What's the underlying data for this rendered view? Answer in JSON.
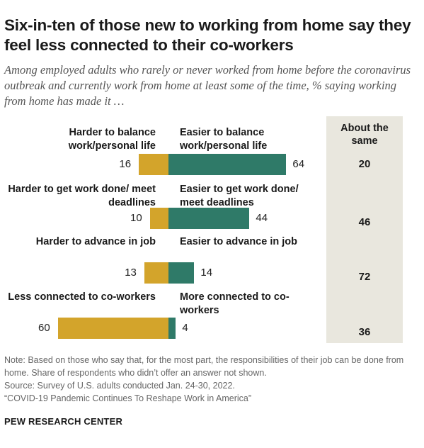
{
  "title": "Six-in-ten of those new to working from home say they feel less connected to their co-workers",
  "subtitle": "Among employed adults who rarely or never worked from home before the coronavirus outbreak and currently work from home at least some of the time, % saying working from home has made it …",
  "about_same_header": "About the same",
  "colors": {
    "harder": "#d3a42b",
    "easier": "#2f7a68",
    "panel": "#e9e7de"
  },
  "chart_data": {
    "type": "bar",
    "orientation": "horizontal-diverging",
    "rows": [
      {
        "left_label": "Harder to balance work/personal life",
        "left_value": 16,
        "right_label": "Easier to balance work/personal life",
        "right_value": 64,
        "about_same": 20
      },
      {
        "left_label": "Harder to get work done/ meet deadlines",
        "left_value": 10,
        "right_label": "Easier to get work done/ meet deadlines",
        "right_value": 44,
        "about_same": 46
      },
      {
        "left_label": "Harder to advance in job",
        "left_value": 13,
        "right_label": "Easier to advance in job",
        "right_value": 14,
        "about_same": 72
      },
      {
        "left_label": "Less connected to co-workers",
        "left_value": 60,
        "right_label": "More connected to co-workers",
        "right_value": 4,
        "about_same": 36
      }
    ]
  },
  "notes": [
    "Note: Based on those who say that, for the most part, the responsibilities of their job can be done from home. Share of respondents who didn’t offer an answer not shown.",
    "Source: Survey of U.S. adults conducted Jan. 24-30, 2022.",
    "“COVID-19 Pandemic Continues To Reshape Work in America”"
  ],
  "brand": "PEW RESEARCH CENTER"
}
